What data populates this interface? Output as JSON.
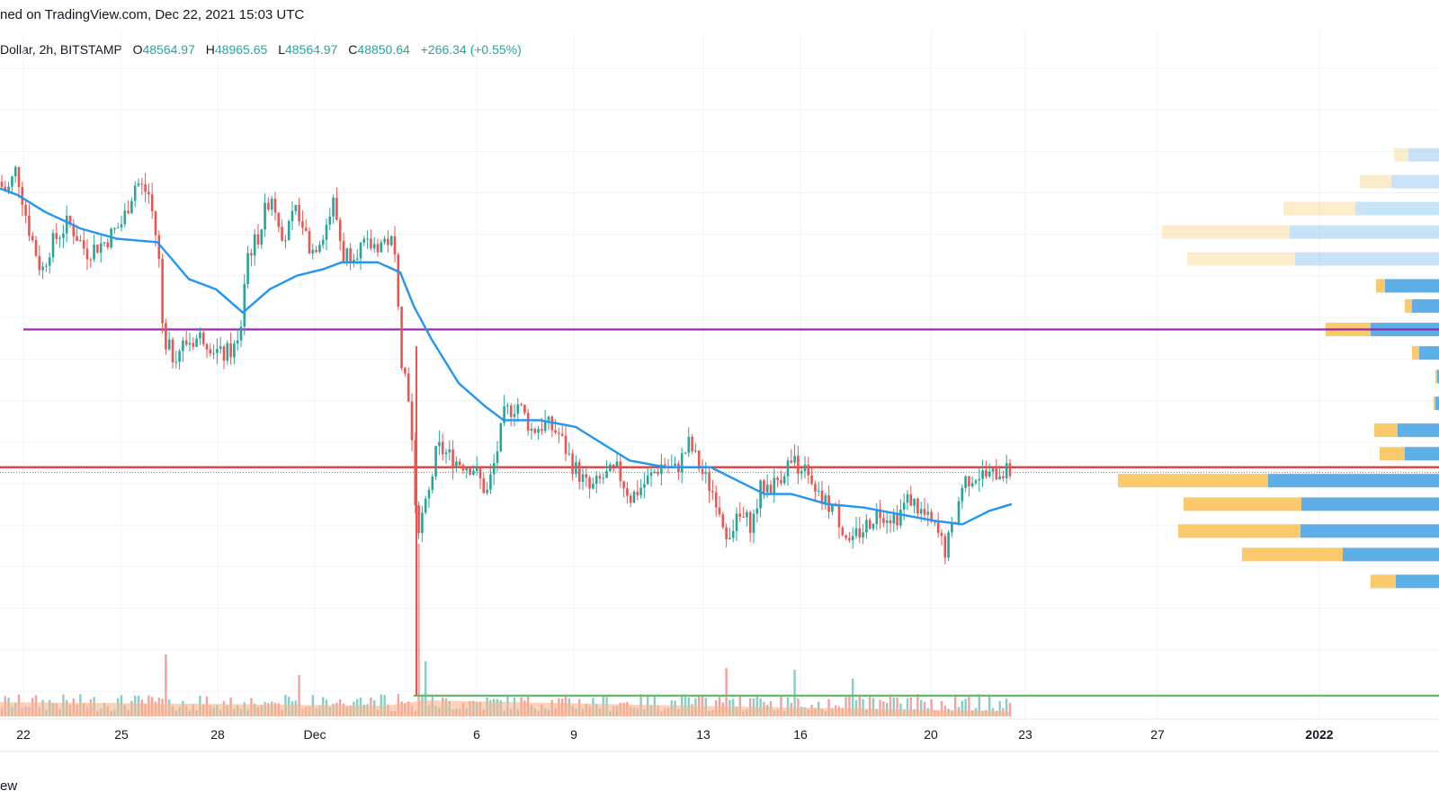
{
  "header": {
    "published_text": "ned on TradingView.com, Dec 22, 2021 15:03 UTC"
  },
  "legend": {
    "symbol_text": "Dollar, 2h, BITSTAMP",
    "open_label": "O",
    "open_value": "48564.97",
    "high_label": "H",
    "high_value": "48965.65",
    "low_label": "L",
    "low_value": "48564.97",
    "close_label": "C",
    "close_value": "48850.64",
    "change_text": "+266.34 (+0.55%)"
  },
  "footer": {
    "brand_text": "ew"
  },
  "colors": {
    "up": "#26a69a",
    "down": "#ef5350",
    "ma": "#2196f3",
    "resistance": "#e53935",
    "support": "#66bb6a",
    "purple": "#9c27b0",
    "vp_up": "#5eaee8",
    "vp_down": "#f9c96b",
    "vol_ma": "#f7b58f"
  },
  "chart_data": {
    "type": "candlestick",
    "title": "",
    "x_axis": {
      "ticks": [
        "22",
        "25",
        "28",
        "Dec",
        "6",
        "9",
        "13",
        "16",
        "20",
        "23",
        "27",
        "2022"
      ],
      "bold_ticks": [
        "2022"
      ]
    },
    "y_axis": {
      "labels_visible": false,
      "ylim": [
        41500,
        60500
      ]
    },
    "price_path": [
      [
        0,
        57500
      ],
      [
        12,
        57200
      ],
      [
        22,
        57900
      ],
      [
        35,
        56200
      ],
      [
        50,
        54800
      ],
      [
        60,
        55600
      ],
      [
        80,
        56300
      ],
      [
        100,
        55400
      ],
      [
        120,
        55700
      ],
      [
        140,
        56300
      ],
      [
        155,
        57500
      ],
      [
        170,
        57100
      ],
      [
        180,
        55400
      ],
      [
        185,
        53000
      ],
      [
        195,
        52300
      ],
      [
        210,
        52700
      ],
      [
        230,
        52900
      ],
      [
        250,
        52300
      ],
      [
        262,
        52500
      ],
      [
        270,
        52700
      ],
      [
        278,
        55300
      ],
      [
        290,
        55800
      ],
      [
        305,
        57200
      ],
      [
        320,
        55800
      ],
      [
        335,
        56700
      ],
      [
        350,
        55400
      ],
      [
        365,
        56100
      ],
      [
        375,
        56900
      ],
      [
        385,
        55300
      ],
      [
        400,
        55500
      ],
      [
        420,
        55600
      ],
      [
        438,
        55800
      ],
      [
        445,
        54900
      ],
      [
        450,
        52300
      ],
      [
        458,
        51200
      ],
      [
        462,
        49600
      ],
      [
        465,
        47700
      ],
      [
        470,
        47200
      ],
      [
        480,
        48100
      ],
      [
        490,
        49600
      ],
      [
        510,
        49200
      ],
      [
        530,
        49000
      ],
      [
        545,
        48200
      ],
      [
        555,
        49300
      ],
      [
        565,
        50600
      ],
      [
        580,
        50900
      ],
      [
        595,
        50100
      ],
      [
        610,
        50300
      ],
      [
        625,
        50000
      ],
      [
        640,
        49100
      ],
      [
        660,
        48300
      ],
      [
        675,
        48700
      ],
      [
        690,
        48900
      ],
      [
        705,
        48100
      ],
      [
        720,
        48500
      ],
      [
        740,
        49100
      ],
      [
        755,
        48900
      ],
      [
        770,
        49700
      ],
      [
        785,
        48800
      ],
      [
        800,
        48100
      ],
      [
        812,
        47100
      ],
      [
        828,
        47500
      ],
      [
        840,
        47300
      ],
      [
        850,
        48400
      ],
      [
        865,
        48500
      ],
      [
        880,
        49100
      ],
      [
        895,
        49100
      ],
      [
        910,
        48100
      ],
      [
        930,
        47800
      ],
      [
        948,
        46800
      ],
      [
        965,
        47200
      ],
      [
        980,
        47700
      ],
      [
        1000,
        47500
      ],
      [
        1015,
        48100
      ],
      [
        1030,
        47600
      ],
      [
        1045,
        47100
      ],
      [
        1055,
        46500
      ],
      [
        1065,
        47400
      ],
      [
        1075,
        48600
      ],
      [
        1090,
        48800
      ],
      [
        1105,
        48700
      ],
      [
        1115,
        48900
      ],
      [
        1125,
        48850
      ]
    ],
    "ma_path": [
      [
        0,
        57300
      ],
      [
        20,
        57100
      ],
      [
        50,
        56600
      ],
      [
        90,
        56100
      ],
      [
        130,
        55800
      ],
      [
        175,
        55700
      ],
      [
        210,
        54600
      ],
      [
        240,
        54300
      ],
      [
        270,
        53600
      ],
      [
        300,
        54300
      ],
      [
        330,
        54700
      ],
      [
        360,
        54900
      ],
      [
        380,
        55100
      ],
      [
        420,
        55100
      ],
      [
        445,
        54800
      ],
      [
        460,
        53800
      ],
      [
        480,
        52800
      ],
      [
        510,
        51500
      ],
      [
        540,
        50800
      ],
      [
        560,
        50400
      ],
      [
        600,
        50400
      ],
      [
        640,
        50200
      ],
      [
        670,
        49700
      ],
      [
        700,
        49200
      ],
      [
        740,
        49000
      ],
      [
        790,
        49000
      ],
      [
        820,
        48600
      ],
      [
        850,
        48200
      ],
      [
        880,
        48200
      ],
      [
        920,
        47900
      ],
      [
        960,
        47800
      ],
      [
        1000,
        47600
      ],
      [
        1040,
        47400
      ],
      [
        1070,
        47300
      ],
      [
        1100,
        47700
      ],
      [
        1125,
        47900
      ]
    ],
    "horizontal_lines": [
      {
        "name": "support",
        "price": 42200,
        "x_start": 460
      },
      {
        "name": "resistance",
        "price": 49000,
        "x_start": 0
      },
      {
        "name": "purple",
        "price": 53100,
        "x_start": 26
      },
      {
        "name": "last-price",
        "price": 48850,
        "x_start": 0,
        "dotted": true
      }
    ],
    "volume_profile": [
      {
        "price": 58300,
        "up": 16,
        "down": 34
      },
      {
        "price": 57500,
        "up": 35,
        "down": 53
      },
      {
        "price": 56700,
        "up": 80,
        "down": 93
      },
      {
        "price": 56000,
        "up": 142,
        "down": 166
      },
      {
        "price": 55200,
        "up": 120,
        "down": 160
      },
      {
        "price": 54400,
        "up": 10,
        "down": 60
      },
      {
        "price": 53800,
        "up": 8,
        "down": 30
      },
      {
        "price": 53100,
        "up": 50,
        "down": 76
      },
      {
        "price": 52400,
        "up": 8,
        "down": 22
      },
      {
        "price": 51700,
        "up": 2,
        "down": 2
      },
      {
        "price": 50900,
        "up": 2,
        "down": 4
      },
      {
        "price": 50100,
        "up": 26,
        "down": 46
      },
      {
        "price": 49400,
        "up": 28,
        "down": 38
      },
      {
        "price": 48600,
        "up": 167,
        "down": 190
      },
      {
        "price": 47900,
        "up": 131,
        "down": 153
      },
      {
        "price": 47100,
        "up": 136,
        "down": 154
      },
      {
        "price": 46400,
        "up": 112,
        "down": 107
      },
      {
        "price": 45600,
        "up": 28,
        "down": 48
      }
    ],
    "volume_spikes": [
      {
        "x": 465,
        "value": 100
      },
      {
        "x": 470,
        "value": 32
      },
      {
        "x": 182,
        "value": 36
      },
      {
        "x": 806,
        "value": 28
      },
      {
        "x": 880,
        "value": 27
      },
      {
        "x": 330,
        "value": 24
      },
      {
        "x": 945,
        "value": 22
      }
    ]
  }
}
